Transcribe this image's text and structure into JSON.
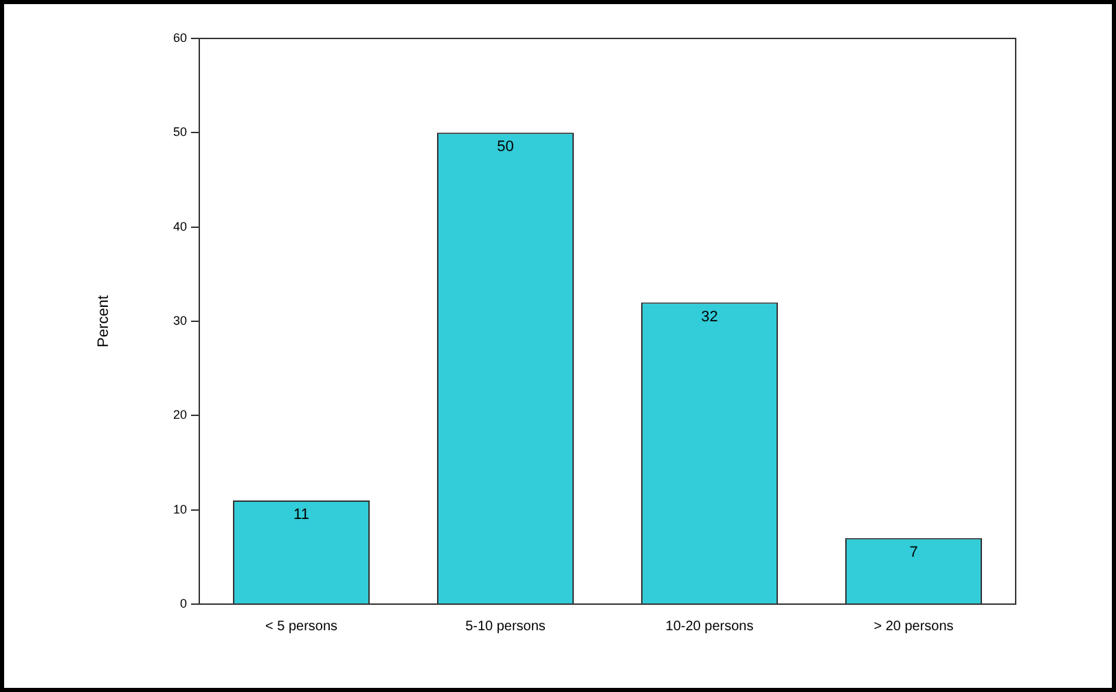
{
  "chart_data": {
    "type": "bar",
    "ylabel": "Percent",
    "categories": [
      "< 5 persons",
      "5-10 persons",
      "10-20 persons",
      "> 20 persons"
    ],
    "values": [
      11,
      50,
      32,
      7
    ],
    "color": "#33ccd9",
    "ylim": [
      0,
      60
    ],
    "yticks": [
      0,
      10,
      20,
      30,
      40,
      50,
      60
    ],
    "grid": false,
    "data_labels": true,
    "legend": false
  }
}
